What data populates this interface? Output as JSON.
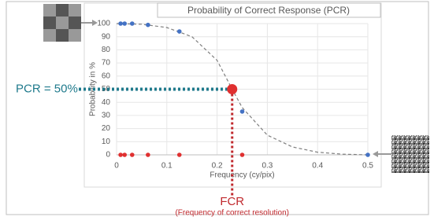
{
  "chart_data": {
    "type": "scatter",
    "title": "Probability of Correct Response (PCR)",
    "x_label": "Frequency (cy/pix)",
    "y_label": "Probability in %",
    "xlim": [
      0,
      0.5
    ],
    "ylim": [
      0,
      100
    ],
    "xticks": [
      0,
      0.1,
      0.2,
      0.3,
      0.4,
      0.5
    ],
    "yticks": [
      0,
      10,
      20,
      30,
      40,
      50,
      60,
      70,
      80,
      90,
      100
    ],
    "grid": true,
    "series": [
      {
        "color": "#4472c4",
        "x": [
          0.008,
          0.016,
          0.031,
          0.0625,
          0.125,
          0.25,
          0.5
        ],
        "values": [
          100,
          100,
          100,
          99,
          94,
          33,
          0
        ]
      },
      {
        "color": "#e03030",
        "x": [
          0.008,
          0.016,
          0.031,
          0.0625,
          0.125,
          0.25
        ],
        "values": [
          0,
          0,
          0,
          0,
          0,
          0
        ]
      }
    ],
    "fit": {
      "color": "#7f7f7f",
      "x": [
        0,
        0.05,
        0.1,
        0.15,
        0.2,
        0.23,
        0.25,
        0.3,
        0.35,
        0.4,
        0.45,
        0.5
      ],
      "values": [
        100,
        99.5,
        97,
        90,
        72,
        50,
        36,
        15,
        6,
        2,
        0.5,
        0
      ]
    },
    "marker": {
      "x": 0.23,
      "y": 50,
      "color": "#e03030"
    },
    "pcr_label": "PCR = 50%",
    "pcr_color": "#1f7a8c",
    "fcr_label": "FCR",
    "fcr_note": "(Frequency of correct resolution)",
    "fcr_color": "#c0282d"
  }
}
